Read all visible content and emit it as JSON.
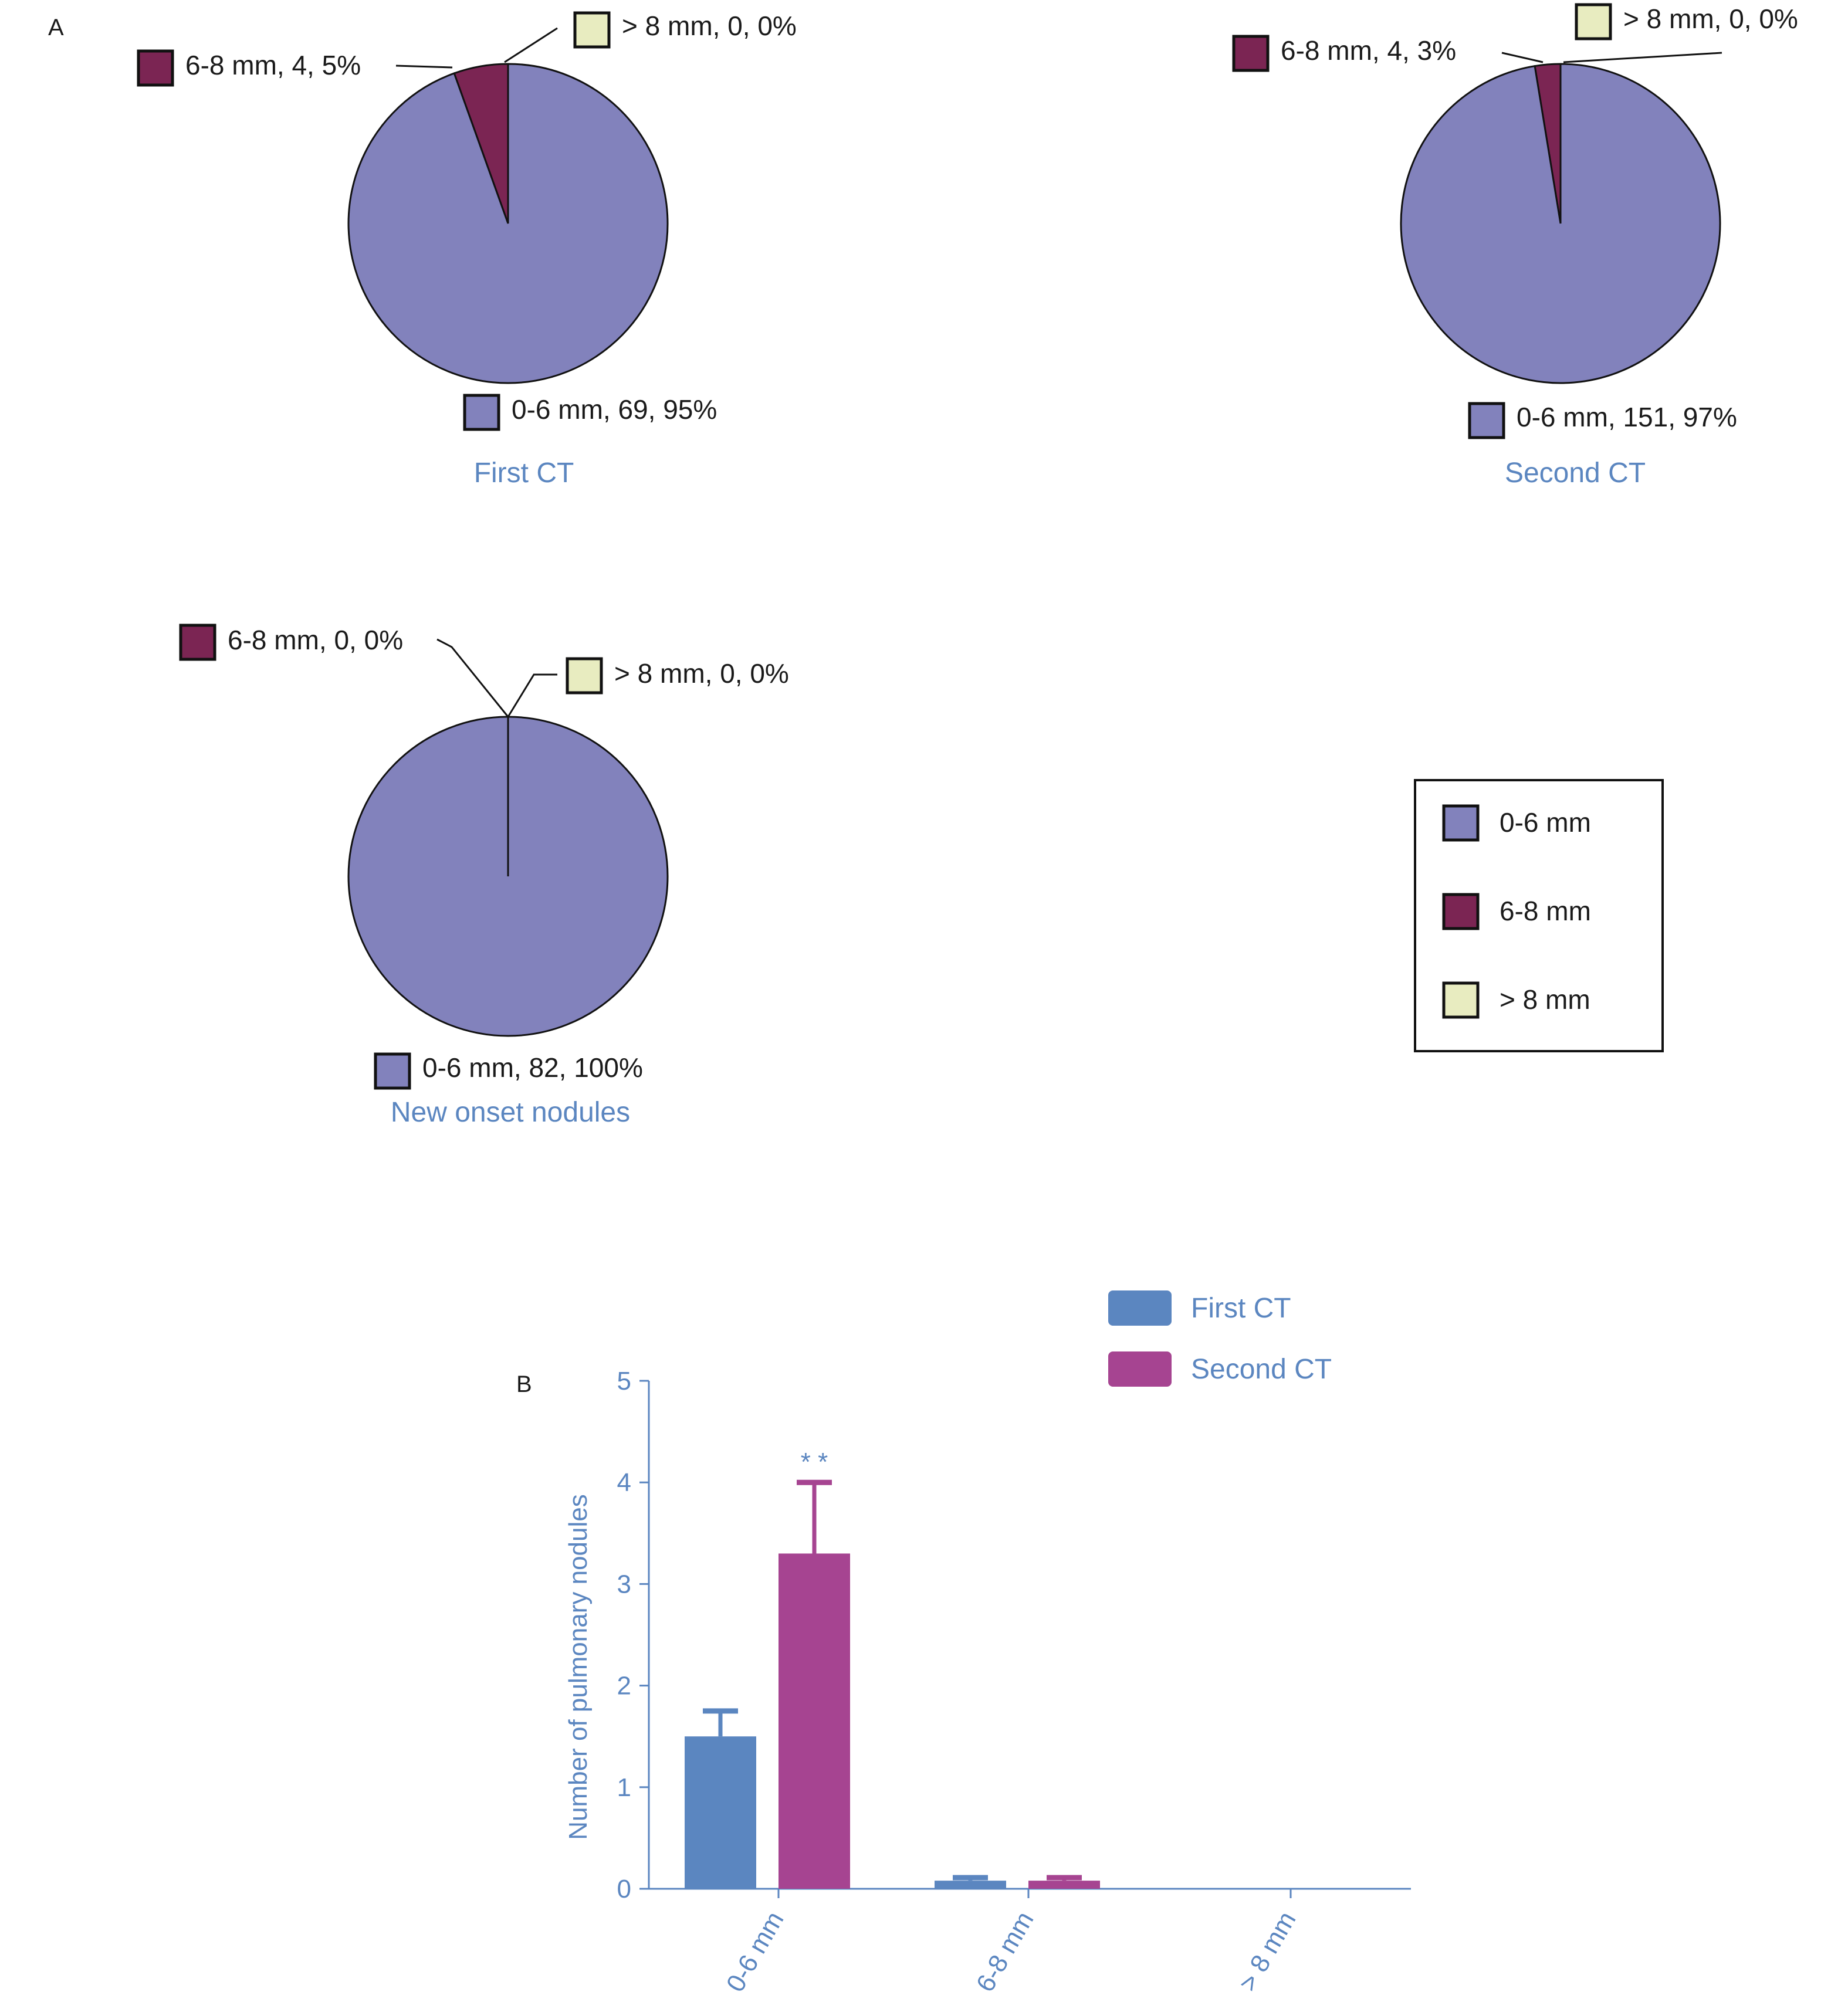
{
  "panel_labels": {
    "a": "A",
    "b": "B"
  },
  "colors": {
    "c06": "#8282bc",
    "c68": "#7b2553",
    "c8": "#e8ecc0",
    "first": "#5b86c0",
    "second": "#a64491",
    "axis": "#5b86c0",
    "caption": "#5b86c0"
  },
  "chart_data": [
    {
      "type": "pie",
      "caption": "First CT",
      "slices": [
        {
          "name": "0-6 mm",
          "count": 69,
          "percent": 95,
          "label": "0-6 mm, 69, 95%"
        },
        {
          "name": "6-8 mm",
          "count": 4,
          "percent": 5,
          "label": "6-8 mm, 4, 5%"
        },
        {
          "name": "> 8 mm",
          "count": 0,
          "percent": 0,
          "label": "> 8 mm, 0, 0%"
        }
      ]
    },
    {
      "type": "pie",
      "caption": "Second CT",
      "slices": [
        {
          "name": "0-6 mm",
          "count": 151,
          "percent": 97,
          "label": "0-6 mm, 151, 97%"
        },
        {
          "name": "6-8 mm",
          "count": 4,
          "percent": 3,
          "label": "6-8 mm, 4, 3%"
        },
        {
          "name": "> 8 mm",
          "count": 0,
          "percent": 0,
          "label": "> 8 mm, 0, 0%"
        }
      ]
    },
    {
      "type": "pie",
      "caption": "New onset nodules",
      "slices": [
        {
          "name": "0-6 mm",
          "count": 82,
          "percent": 100,
          "label": "0-6 mm, 82, 100%"
        },
        {
          "name": "6-8 mm",
          "count": 0,
          "percent": 0,
          "label": "6-8 mm, 0, 0%"
        },
        {
          "name": "> 8 mm",
          "count": 0,
          "percent": 0,
          "label": "> 8 mm, 0, 0%"
        }
      ]
    },
    {
      "type": "bar",
      "categories": [
        "0-6 mm",
        "6-8 mm",
        "> 8 mm"
      ],
      "series": [
        {
          "name": "First CT",
          "values": [
            1.5,
            0.08,
            0
          ],
          "error": [
            0.25,
            0.03,
            0
          ]
        },
        {
          "name": "Second CT",
          "values": [
            3.3,
            0.08,
            0
          ],
          "error": [
            0.7,
            0.03,
            0
          ]
        }
      ],
      "annotation": "* *",
      "annotation_category": "0-6 mm",
      "ylabel": "Number of pulmonary nodules",
      "xlabel": "",
      "ylim": [
        0,
        5
      ],
      "yticks": [
        "0",
        "1",
        "2",
        "3",
        "4",
        "5"
      ],
      "legend_position": "top-right"
    }
  ],
  "pie_legend": [
    "0-6 mm",
    "6-8 mm",
    "> 8 mm"
  ]
}
